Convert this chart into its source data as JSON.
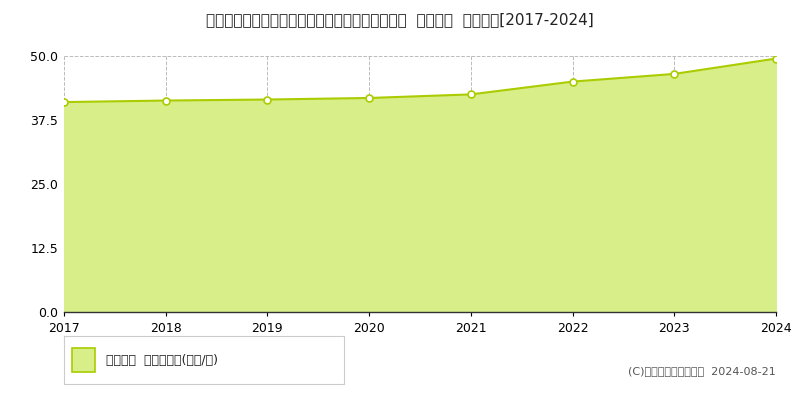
{
  "title": "静岡県駿東郡長泉町中土狩字大原７２８番２１外  地価公示  地価推移[2017-2024]",
  "years": [
    2017,
    2018,
    2019,
    2020,
    2021,
    2022,
    2023,
    2024
  ],
  "values": [
    41.0,
    41.3,
    41.5,
    41.8,
    42.5,
    45.0,
    46.5,
    49.5
  ],
  "line_color": "#aacc00",
  "fill_color": "#d8ee88",
  "marker_color": "#ffffff",
  "marker_edge_color": "#aacc00",
  "ylim": [
    0,
    50
  ],
  "yticks": [
    0,
    12.5,
    25,
    37.5,
    50
  ],
  "grid_color": "#bbbbbb",
  "background_color": "#ffffff",
  "legend_label": "地価公示  平均坪単価(万円/坪)",
  "copyright_text": "(C)土地価格ドットコム  2024-08-21",
  "title_fontsize": 11,
  "tick_fontsize": 9,
  "legend_fontsize": 9,
  "copyright_fontsize": 8
}
